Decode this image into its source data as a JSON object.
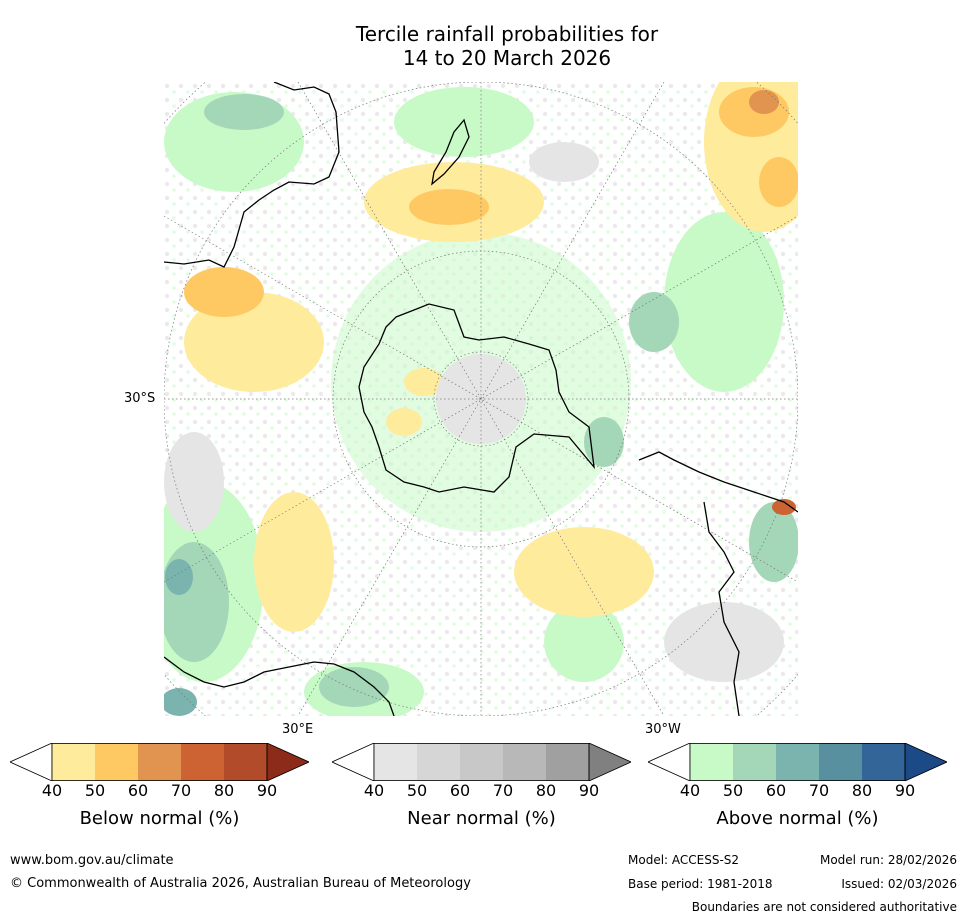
{
  "title": {
    "line1": "Tercile rainfall probabilities for",
    "line2": "14 to 20 March 2026"
  },
  "map": {
    "labels": {
      "lat": "30°S",
      "lon_east": "30°E",
      "lon_west": "30°W"
    }
  },
  "colorbars": [
    {
      "title": "Below normal (%)",
      "ticks": [
        "40",
        "50",
        "60",
        "70",
        "80",
        "90"
      ],
      "colors": [
        "#ffffff",
        "#ffeb9c",
        "#fec962",
        "#e19350",
        "#cd6233",
        "#b24b2a",
        "#8c2b1a"
      ]
    },
    {
      "title": "Near normal (%)",
      "ticks": [
        "40",
        "50",
        "60",
        "70",
        "80",
        "90"
      ],
      "colors": [
        "#ffffff",
        "#e5e5e5",
        "#d6d6d6",
        "#c8c8c8",
        "#b8b8b8",
        "#a0a0a0",
        "#808080"
      ]
    },
    {
      "title": "Above normal (%)",
      "ticks": [
        "40",
        "50",
        "60",
        "70",
        "80",
        "90"
      ],
      "colors": [
        "#ffffff",
        "#c8fac8",
        "#a3d7b8",
        "#7bb4ae",
        "#5990a0",
        "#336598",
        "#1b4a87"
      ]
    }
  ],
  "footer": {
    "website": "www.bom.gov.au/climate",
    "copyright": "© Commonwealth of Australia 2026, Australian Bureau of Meteorology",
    "model": "Model: ACCESS-S2",
    "model_run": "Model run: 28/02/2026",
    "base_period": "Base period: 1981-2018",
    "issued": "Issued: 02/03/2026",
    "disclaimer": "Boundaries are not considered authoritative"
  }
}
